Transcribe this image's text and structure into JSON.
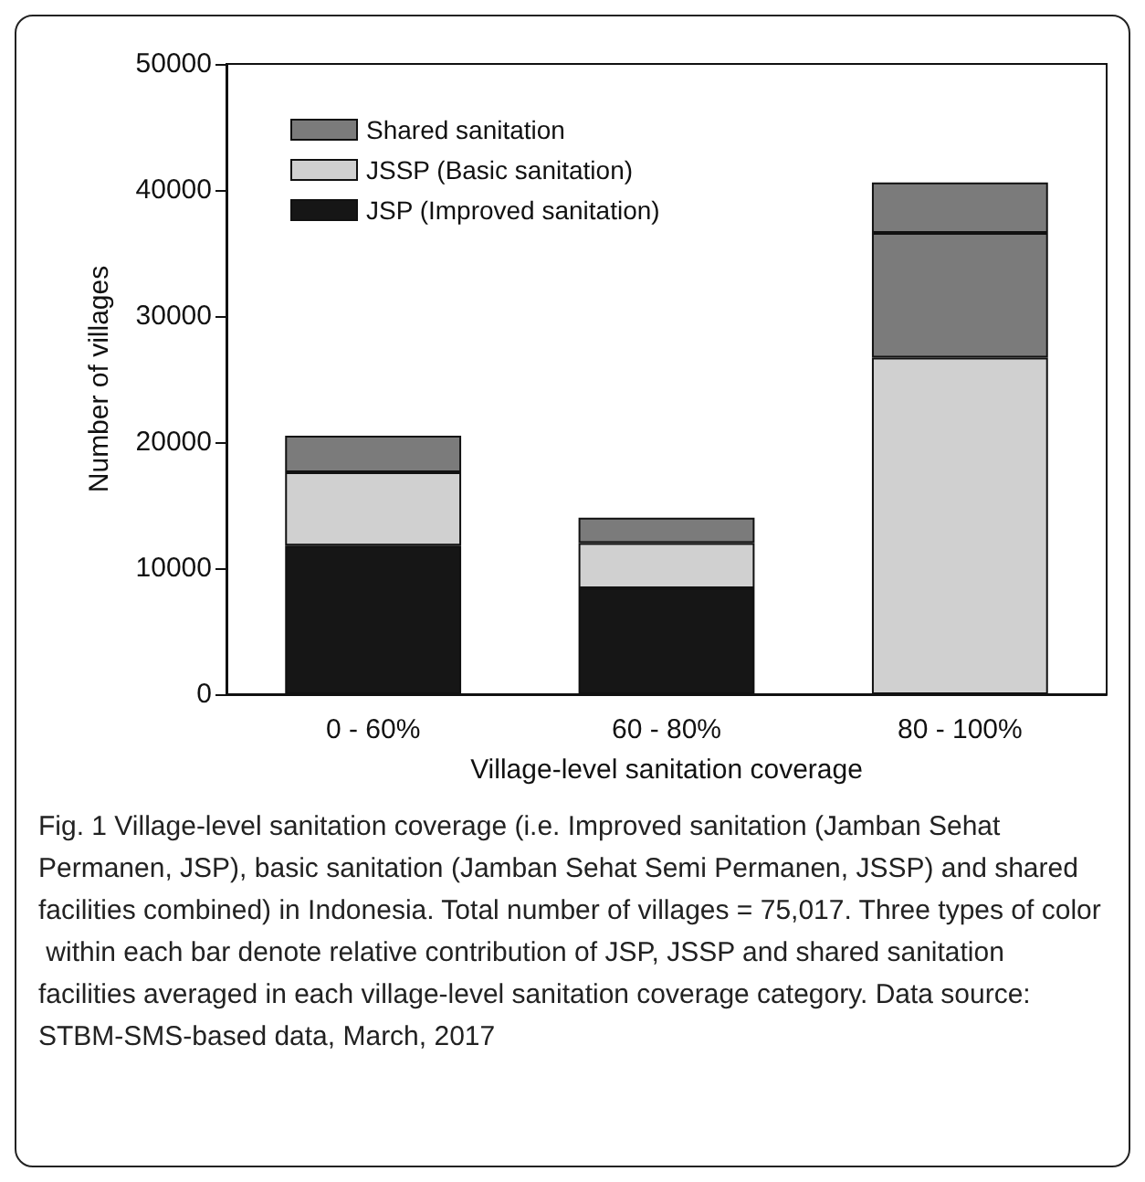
{
  "chart_data": {
    "type": "bar",
    "stacked": true,
    "xlabel": "Village-level sanitation coverage",
    "ylabel": "Number of villages",
    "categories": [
      "0 - 60%",
      "60 - 80%",
      "80 - 100%"
    ],
    "series": [
      {
        "name": "JSP (Improved sanitation)",
        "color": "#161616",
        "colors": [
          "#161616",
          "#161616",
          "#d0d0d0"
        ],
        "values": [
          11800,
          8400,
          26700
        ]
      },
      {
        "name": "JSSP (Basic sanitation)",
        "color": "#d0d0d0",
        "colors": [
          "#d0d0d0",
          "#d0d0d0",
          "#7b7b7b"
        ],
        "values": [
          5800,
          3600,
          9900
        ]
      },
      {
        "name": "Shared sanitation",
        "color": "#7b7b7b",
        "colors": [
          "#7b7b7b",
          "#7b7b7b",
          "#7b7b7b"
        ],
        "values": [
          2900,
          2000,
          4000
        ]
      }
    ],
    "ylim": [
      0,
      50000
    ],
    "yticks": [
      0,
      10000,
      20000,
      30000,
      40000,
      50000
    ],
    "grid": false,
    "legend": "top left",
    "annotations": [
      "Fig. 1 Village-level sanitation coverage (i.e. Improved sanitation (Jamban Sehat Permanen, JSP), basic sanitation (Jamban Sehat Semi Permanen, JSSP) and shared facilities combined) in Indonesia. Total number of villages = 75,017. Three types of color within each bar denote relative contribution of JSP, JSSP and shared sanitation facilities averaged in each village-level sanitation coverage category. Data source: STBM-SMS-based data, March, 2017"
    ]
  }
}
